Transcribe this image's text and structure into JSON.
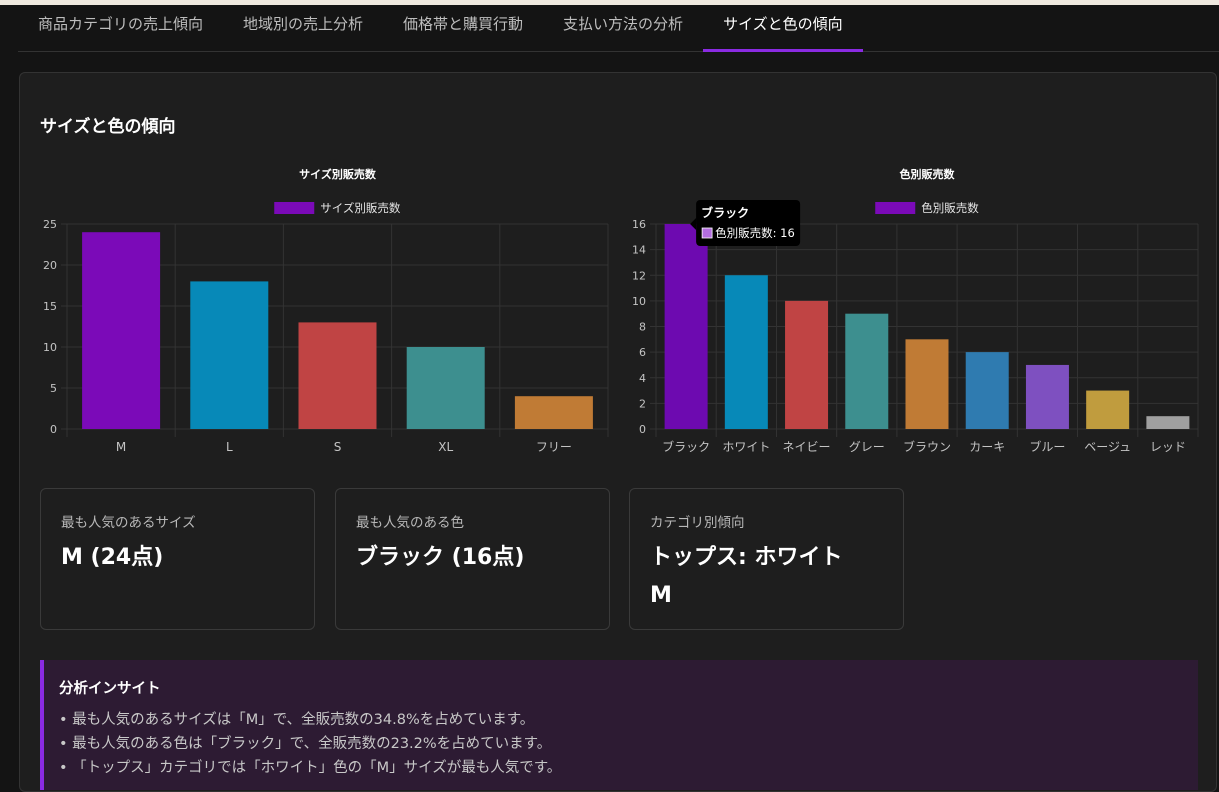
{
  "tabs": [
    {
      "label": "商品カテゴリの売上傾向",
      "active": false
    },
    {
      "label": "地域別の売上分析",
      "active": false
    },
    {
      "label": "価格帯と購買行動",
      "active": false
    },
    {
      "label": "支払い方法の分析",
      "active": false
    },
    {
      "label": "サイズと色の傾向",
      "active": true
    }
  ],
  "section": {
    "title": "サイズと色の傾向"
  },
  "chart_data": [
    {
      "type": "bar",
      "title": "サイズ別販売数",
      "legend": {
        "label": "サイズ別販売数",
        "color": "#7b0ab8",
        "placement": "top"
      },
      "categories": [
        "M",
        "L",
        "S",
        "XL",
        "フリー"
      ],
      "values": [
        24,
        18,
        13,
        10,
        4
      ],
      "colors": [
        "#7b0ab8",
        "#0789b8",
        "#c04444",
        "#3d8f8f",
        "#c07b35"
      ],
      "ylim": [
        0,
        25
      ],
      "yticks": [
        0,
        5,
        10,
        15,
        20,
        25
      ],
      "grid": true
    },
    {
      "type": "bar",
      "title": "色別販売数",
      "legend": {
        "label": "色別販売数",
        "color": "#7b0ab8",
        "placement": "top"
      },
      "categories": [
        "ブラック",
        "ホワイト",
        "ネイビー",
        "グレー",
        "ブラウン",
        "カーキ",
        "ブルー",
        "ベージュ",
        "レッド"
      ],
      "values": [
        16,
        12,
        10,
        9,
        7,
        6,
        5,
        3,
        1
      ],
      "colors": [
        "#6d0ab0",
        "#0789b8",
        "#c04444",
        "#3d8f8f",
        "#c07b35",
        "#2f7bb0",
        "#7e50c0",
        "#c09c3e",
        "#a0a0a0"
      ],
      "ylim": [
        0,
        16
      ],
      "yticks": [
        0,
        2,
        4,
        6,
        8,
        10,
        12,
        14,
        16
      ],
      "grid": true,
      "tooltip": {
        "title": "ブラック",
        "text": "色別販売数: 16",
        "swatch": "#b36ee0"
      }
    }
  ],
  "cards": [
    {
      "label": "最も人気のあるサイズ",
      "value": "M (24点)"
    },
    {
      "label": "最も人気のある色",
      "value": "ブラック (16点)"
    },
    {
      "label": "カテゴリ別傾向",
      "value": "トップス: ホワイト M"
    }
  ],
  "insight": {
    "title": "分析インサイト",
    "items": [
      "最も人気のあるサイズは「M」で、全販売数の34.8%を占めています。",
      "最も人気のある色は「ブラック」で、全販売数の23.2%を占めています。",
      "「トップス」カテゴリでは「ホワイト」色の「M」サイズが最も人気です。"
    ]
  }
}
